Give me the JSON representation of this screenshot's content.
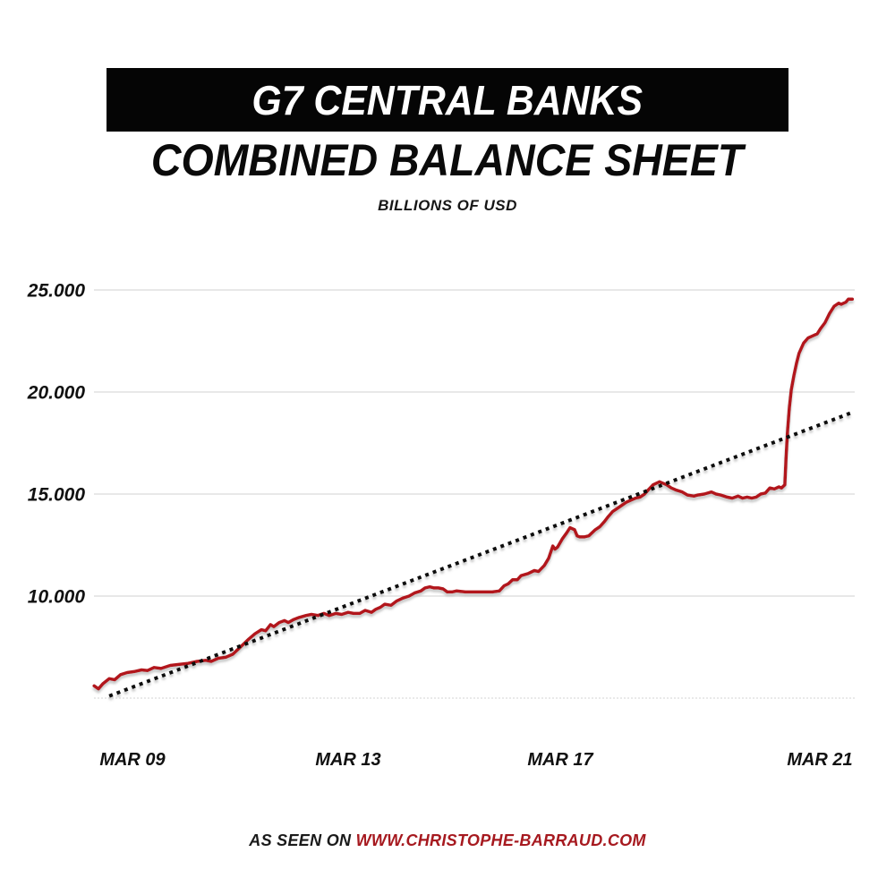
{
  "header": {
    "banner_title": "G7 CENTRAL BANKS",
    "title_line2": "COMBINED BALANCE SHEET",
    "subtitle": "BILLIONS OF USD"
  },
  "footer": {
    "prefix": "AS SEEN ON ",
    "link": "WWW.CHRISTOPHE-BARRAUD.COM"
  },
  "colors": {
    "banner_bg": "#050505",
    "banner_text": "#ffffff",
    "series_red": "#b2161d",
    "trend_black": "#0a0a0a",
    "gridline": "#d9d9d9",
    "baseline_dashed": "#dcdcdc",
    "footer_link_red": "#a6191f",
    "tick_text": "#111111"
  },
  "chart_data": {
    "type": "line",
    "title": "G7 CENTRAL BANKS COMBINED BALANCE SHEET",
    "ylabel": "Billions of USD",
    "grid": true,
    "legend_position": "none",
    "y_axis": {
      "range": [
        5000,
        25000
      ],
      "ticks": [
        {
          "label": "25.000",
          "value": 25000
        },
        {
          "label": "20.000",
          "value": 20000
        },
        {
          "label": "15.000",
          "value": 15000
        },
        {
          "label": "10.000",
          "value": 10000
        },
        {
          "label": "",
          "value": 5000
        }
      ]
    },
    "x_axis": {
      "ticks": [
        {
          "label": "MAR 09",
          "year": 2009.2
        },
        {
          "label": "MAR 13",
          "year": 2013.2
        },
        {
          "label": "MAR 17",
          "year": 2017.2
        },
        {
          "label": "MAR 21",
          "year": 2021.2
        }
      ],
      "range": [
        2008.49,
        2021.7
      ]
    },
    "series": [
      {
        "name": "G7 central banks combined balance sheet (USD bn)",
        "style": "solid",
        "color": "#b2161d",
        "points": [
          [
            2008.49,
            5600
          ],
          [
            2008.57,
            5450
          ],
          [
            2008.65,
            5700
          ],
          [
            2008.77,
            5950
          ],
          [
            2008.87,
            5900
          ],
          [
            2008.98,
            6150
          ],
          [
            2009.1,
            6250
          ],
          [
            2009.23,
            6300
          ],
          [
            2009.37,
            6380
          ],
          [
            2009.48,
            6350
          ],
          [
            2009.6,
            6500
          ],
          [
            2009.73,
            6450
          ],
          [
            2009.9,
            6600
          ],
          [
            2010.06,
            6650
          ],
          [
            2010.23,
            6700
          ],
          [
            2010.4,
            6800
          ],
          [
            2010.56,
            6850
          ],
          [
            2010.66,
            6800
          ],
          [
            2010.79,
            6950
          ],
          [
            2010.93,
            7000
          ],
          [
            2011.06,
            7150
          ],
          [
            2011.16,
            7400
          ],
          [
            2011.26,
            7650
          ],
          [
            2011.36,
            7900
          ],
          [
            2011.47,
            8150
          ],
          [
            2011.59,
            8350
          ],
          [
            2011.67,
            8300
          ],
          [
            2011.76,
            8600
          ],
          [
            2011.82,
            8500
          ],
          [
            2011.92,
            8700
          ],
          [
            2012.02,
            8800
          ],
          [
            2012.09,
            8700
          ],
          [
            2012.19,
            8850
          ],
          [
            2012.29,
            8950
          ],
          [
            2012.42,
            9050
          ],
          [
            2012.52,
            9100
          ],
          [
            2012.64,
            9050
          ],
          [
            2012.75,
            9150
          ],
          [
            2012.85,
            9050
          ],
          [
            2012.97,
            9150
          ],
          [
            2013.08,
            9100
          ],
          [
            2013.2,
            9200
          ],
          [
            2013.3,
            9150
          ],
          [
            2013.42,
            9150
          ],
          [
            2013.52,
            9300
          ],
          [
            2013.64,
            9200
          ],
          [
            2013.72,
            9350
          ],
          [
            2013.81,
            9450
          ],
          [
            2013.89,
            9600
          ],
          [
            2014.01,
            9550
          ],
          [
            2014.11,
            9750
          ],
          [
            2014.23,
            9900
          ],
          [
            2014.35,
            10000
          ],
          [
            2014.45,
            10150
          ],
          [
            2014.57,
            10250
          ],
          [
            2014.65,
            10400
          ],
          [
            2014.74,
            10450
          ],
          [
            2014.82,
            10400
          ],
          [
            2014.9,
            10400
          ],
          [
            2014.99,
            10350
          ],
          [
            2015.07,
            10200
          ],
          [
            2015.16,
            10200
          ],
          [
            2015.24,
            10250
          ],
          [
            2015.41,
            10200
          ],
          [
            2015.58,
            10200
          ],
          [
            2015.75,
            10200
          ],
          [
            2015.92,
            10200
          ],
          [
            2016.05,
            10250
          ],
          [
            2016.14,
            10500
          ],
          [
            2016.22,
            10600
          ],
          [
            2016.3,
            10800
          ],
          [
            2016.39,
            10800
          ],
          [
            2016.46,
            11000
          ],
          [
            2016.59,
            11100
          ],
          [
            2016.71,
            11250
          ],
          [
            2016.79,
            11200
          ],
          [
            2016.9,
            11500
          ],
          [
            2016.98,
            11850
          ],
          [
            2017.06,
            12450
          ],
          [
            2017.1,
            12300
          ],
          [
            2017.15,
            12400
          ],
          [
            2017.23,
            12800
          ],
          [
            2017.3,
            13100
          ],
          [
            2017.35,
            13350
          ],
          [
            2017.42,
            13250
          ],
          [
            2017.46,
            12950
          ],
          [
            2017.5,
            12900
          ],
          [
            2017.57,
            12900
          ],
          [
            2017.64,
            12950
          ],
          [
            2017.74,
            13250
          ],
          [
            2017.81,
            13400
          ],
          [
            2017.88,
            13650
          ],
          [
            2017.94,
            13900
          ],
          [
            2018.01,
            14150
          ],
          [
            2018.08,
            14300
          ],
          [
            2018.15,
            14450
          ],
          [
            2018.22,
            14600
          ],
          [
            2018.29,
            14700
          ],
          [
            2018.36,
            14800
          ],
          [
            2018.43,
            14850
          ],
          [
            2018.5,
            15000
          ],
          [
            2018.57,
            15250
          ],
          [
            2018.63,
            15450
          ],
          [
            2018.73,
            15600
          ],
          [
            2018.84,
            15450
          ],
          [
            2018.91,
            15300
          ],
          [
            2018.98,
            15200
          ],
          [
            2019.08,
            15100
          ],
          [
            2019.16,
            14950
          ],
          [
            2019.26,
            14900
          ],
          [
            2019.32,
            14950
          ],
          [
            2019.42,
            15000
          ],
          [
            2019.53,
            15100
          ],
          [
            2019.6,
            15000
          ],
          [
            2019.67,
            14950
          ],
          [
            2019.77,
            14850
          ],
          [
            2019.85,
            14800
          ],
          [
            2019.94,
            14900
          ],
          [
            2020.01,
            14800
          ],
          [
            2020.08,
            14850
          ],
          [
            2020.15,
            14800
          ],
          [
            2020.22,
            14850
          ],
          [
            2020.29,
            15000
          ],
          [
            2020.36,
            15050
          ],
          [
            2020.43,
            15300
          ],
          [
            2020.5,
            15250
          ],
          [
            2020.57,
            15350
          ],
          [
            2020.61,
            15300
          ],
          [
            2020.66,
            15450
          ],
          [
            2020.68,
            16800
          ],
          [
            2020.7,
            18000
          ],
          [
            2020.73,
            19200
          ],
          [
            2020.76,
            20100
          ],
          [
            2020.8,
            20800
          ],
          [
            2020.84,
            21400
          ],
          [
            2020.88,
            21900
          ],
          [
            2020.95,
            22400
          ],
          [
            2021.02,
            22650
          ],
          [
            2021.09,
            22750
          ],
          [
            2021.16,
            22850
          ],
          [
            2021.21,
            23100
          ],
          [
            2021.28,
            23400
          ],
          [
            2021.35,
            23850
          ],
          [
            2021.42,
            24200
          ],
          [
            2021.49,
            24350
          ],
          [
            2021.53,
            24300
          ],
          [
            2021.6,
            24400
          ],
          [
            2021.64,
            24550
          ],
          [
            2021.7,
            24550
          ]
        ]
      },
      {
        "name": "Linear trend",
        "style": "dotted",
        "color": "#0a0a0a",
        "points": [
          [
            2008.77,
            5100
          ],
          [
            2021.7,
            19000
          ]
        ]
      }
    ]
  }
}
